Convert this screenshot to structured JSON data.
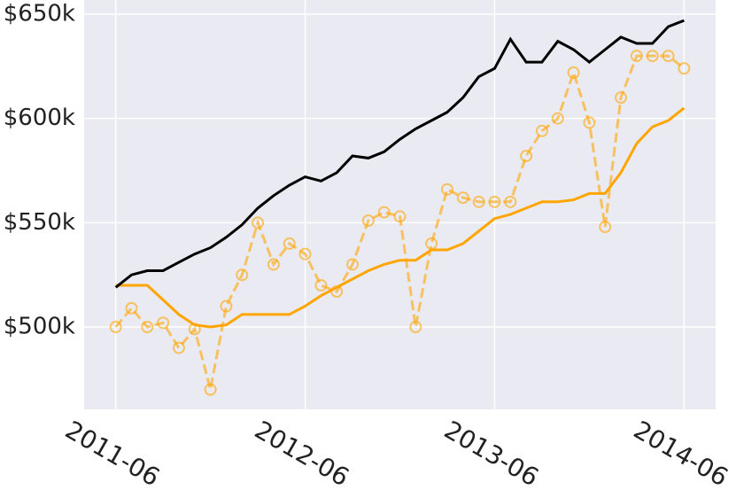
{
  "chart_data": {
    "type": "line",
    "x": [
      "2011-06",
      "2011-07",
      "2011-08",
      "2011-09",
      "2011-10",
      "2011-11",
      "2011-12",
      "2012-01",
      "2012-02",
      "2012-03",
      "2012-04",
      "2012-05",
      "2012-06",
      "2012-07",
      "2012-08",
      "2012-09",
      "2012-10",
      "2012-11",
      "2012-12",
      "2013-01",
      "2013-02",
      "2013-03",
      "2013-04",
      "2013-05",
      "2013-06",
      "2013-07",
      "2013-08",
      "2013-09",
      "2013-10",
      "2013-11",
      "2013-12",
      "2014-01",
      "2014-02",
      "2014-03",
      "2014-04",
      "2014-05",
      "2014-06"
    ],
    "series": [
      {
        "color": "#000000",
        "linestyle": "solid",
        "values": [
          519000,
          525000,
          527000,
          527000,
          531000,
          535000,
          538000,
          543000,
          549000,
          557000,
          563000,
          568000,
          572000,
          570000,
          574000,
          582000,
          581000,
          584000,
          590000,
          595000,
          599000,
          603000,
          610000,
          620000,
          624000,
          638000,
          627000,
          627000,
          637000,
          633000,
          627000,
          633000,
          639000,
          636000,
          636000,
          644000,
          647000
        ]
      },
      {
        "color": "#ffa500",
        "linestyle": "solid",
        "values": [
          520000,
          520000,
          520000,
          513000,
          506000,
          501000,
          500000,
          501000,
          506000,
          506000,
          506000,
          506000,
          510000,
          515000,
          519000,
          523000,
          527000,
          530000,
          532000,
          532000,
          537000,
          537000,
          540000,
          546000,
          552000,
          554000,
          557000,
          560000,
          560000,
          561000,
          564000,
          564000,
          574000,
          588000,
          596000,
          599000,
          605000
        ]
      },
      {
        "color": "#ffa500",
        "linestyle": "dashed",
        "marker": "circle",
        "values": [
          500000,
          509000,
          500000,
          502000,
          490000,
          499000,
          470000,
          510000,
          525000,
          550000,
          530000,
          540000,
          535000,
          520000,
          517000,
          530000,
          551000,
          555000,
          553000,
          500000,
          540000,
          566000,
          562000,
          560000,
          560000,
          560000,
          582000,
          594000,
          600000,
          622000,
          598000,
          548000,
          610000,
          630000,
          630000,
          630000,
          624000
        ]
      }
    ],
    "xlim": [
      "2011-04",
      "2014-08"
    ],
    "xticks": [
      "2011-06",
      "2012-06",
      "2013-06",
      "2014-06"
    ],
    "ylim": [
      460500,
      656800
    ],
    "yticks": [
      {
        "value": 500000,
        "label": "$500k"
      },
      {
        "value": 550000,
        "label": "$550k"
      },
      {
        "value": 600000,
        "label": "$600k"
      },
      {
        "value": 650000,
        "label": "$650k"
      }
    ],
    "grid": true
  }
}
